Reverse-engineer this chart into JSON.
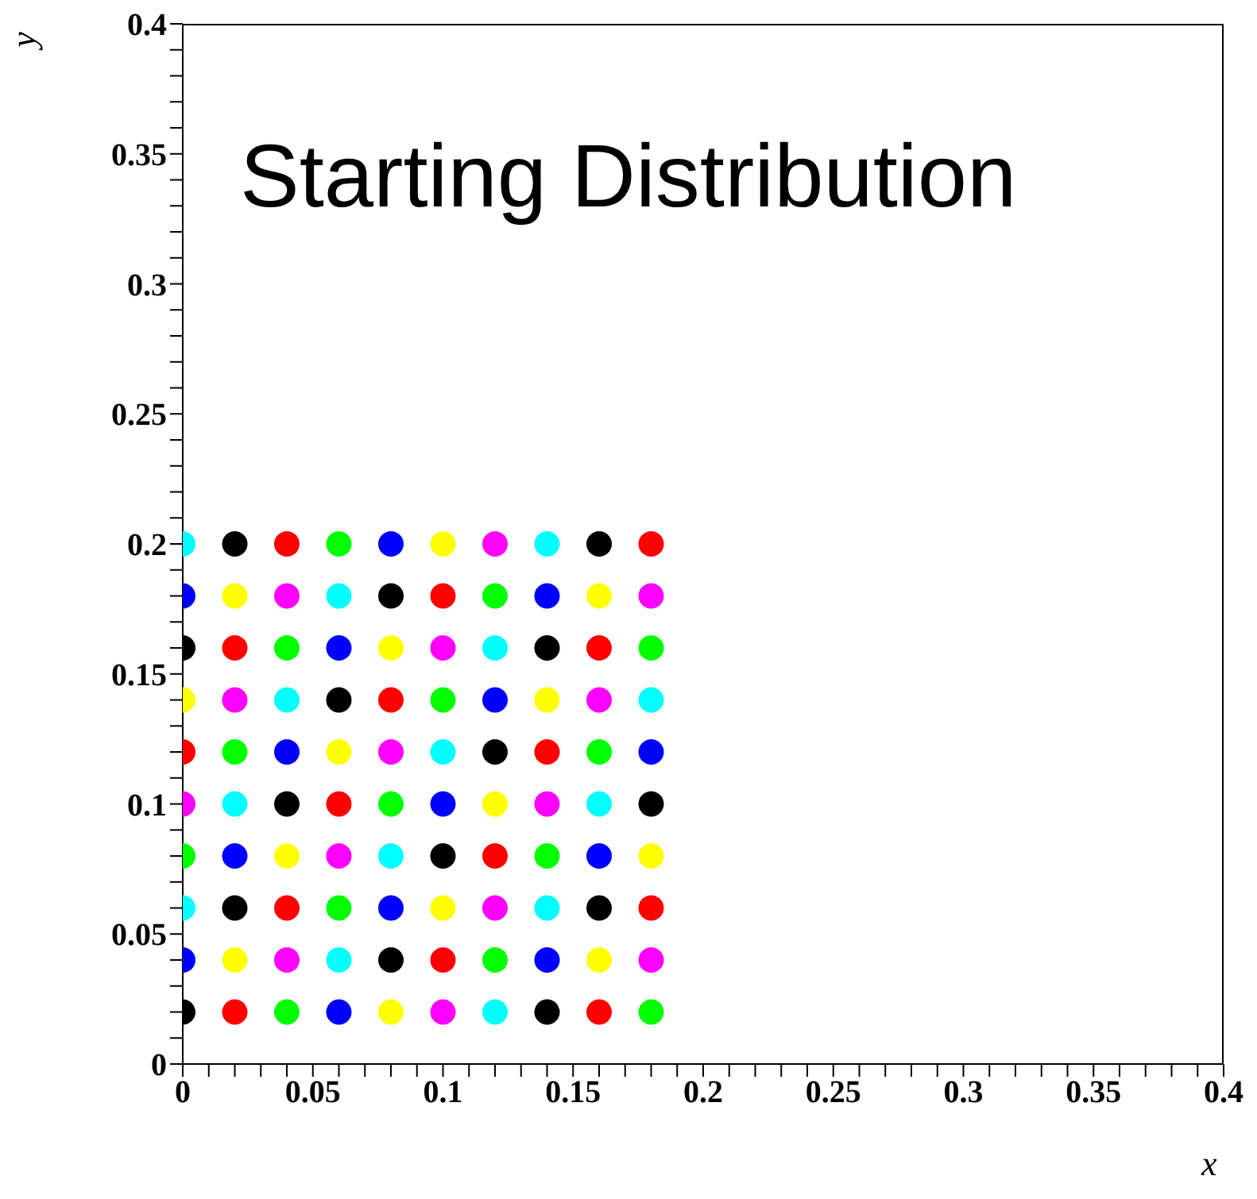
{
  "chart_data": {
    "type": "scatter",
    "title": "Starting Distribution",
    "xlabel": "x",
    "ylabel": "y",
    "xlim": [
      0,
      0.4
    ],
    "ylim": [
      0,
      0.4
    ],
    "xticks": [
      0,
      {
        "value": 0.01,
        "label": null
      },
      {
        "value": 0.02,
        "label": null
      },
      {
        "value": 0.03,
        "label": null
      },
      {
        "value": 0.04,
        "label": null
      },
      0.05,
      {
        "value": 0.06,
        "label": null
      },
      {
        "value": 0.07,
        "label": null
      },
      {
        "value": 0.08,
        "label": null
      },
      {
        "value": 0.09,
        "label": null
      },
      0.1,
      {
        "value": 0.11,
        "label": null
      },
      {
        "value": 0.12,
        "label": null
      },
      {
        "value": 0.13,
        "label": null
      },
      {
        "value": 0.14,
        "label": null
      },
      0.15,
      {
        "value": 0.16,
        "label": null
      },
      {
        "value": 0.17,
        "label": null
      },
      {
        "value": 0.18,
        "label": null
      },
      {
        "value": 0.19,
        "label": null
      },
      0.2,
      {
        "value": 0.21,
        "label": null
      },
      {
        "value": 0.22,
        "label": null
      },
      {
        "value": 0.23,
        "label": null
      },
      {
        "value": 0.24,
        "label": null
      },
      0.25,
      {
        "value": 0.26,
        "label": null
      },
      {
        "value": 0.27,
        "label": null
      },
      {
        "value": 0.28,
        "label": null
      },
      {
        "value": 0.29,
        "label": null
      },
      0.3,
      {
        "value": 0.31,
        "label": null
      },
      {
        "value": 0.32,
        "label": null
      },
      {
        "value": 0.33,
        "label": null
      },
      {
        "value": 0.34,
        "label": null
      },
      0.35,
      {
        "value": 0.36,
        "label": null
      },
      {
        "value": 0.37,
        "label": null
      },
      {
        "value": 0.38,
        "label": null
      },
      {
        "value": 0.39,
        "label": null
      },
      0.4
    ],
    "yticks": [
      0,
      {
        "value": 0.01,
        "label": null
      },
      {
        "value": 0.02,
        "label": null
      },
      {
        "value": 0.03,
        "label": null
      },
      {
        "value": 0.04,
        "label": null
      },
      0.05,
      {
        "value": 0.06,
        "label": null
      },
      {
        "value": 0.07,
        "label": null
      },
      {
        "value": 0.08,
        "label": null
      },
      {
        "value": 0.09,
        "label": null
      },
      0.1,
      {
        "value": 0.11,
        "label": null
      },
      {
        "value": 0.12,
        "label": null
      },
      {
        "value": 0.13,
        "label": null
      },
      {
        "value": 0.14,
        "label": null
      },
      0.15,
      {
        "value": 0.16,
        "label": null
      },
      {
        "value": 0.17,
        "label": null
      },
      {
        "value": 0.18,
        "label": null
      },
      {
        "value": 0.19,
        "label": null
      },
      0.2,
      {
        "value": 0.21,
        "label": null
      },
      {
        "value": 0.22,
        "label": null
      },
      {
        "value": 0.23,
        "label": null
      },
      {
        "value": 0.24,
        "label": null
      },
      0.25,
      {
        "value": 0.26,
        "label": null
      },
      {
        "value": 0.27,
        "label": null
      },
      {
        "value": 0.28,
        "label": null
      },
      {
        "value": 0.29,
        "label": null
      },
      0.3,
      {
        "value": 0.31,
        "label": null
      },
      {
        "value": 0.32,
        "label": null
      },
      {
        "value": 0.33,
        "label": null
      },
      {
        "value": 0.34,
        "label": null
      },
      0.35,
      {
        "value": 0.36,
        "label": null
      },
      {
        "value": 0.37,
        "label": null
      },
      {
        "value": 0.38,
        "label": null
      },
      {
        "value": 0.39,
        "label": null
      },
      0.4
    ],
    "grid": false,
    "legend": false,
    "marker": "circle",
    "series": [
      {
        "x": [
          0,
          0.02,
          0.04,
          0.06,
          0.08,
          0.1,
          0.12,
          0.14,
          0.16,
          0.18,
          0,
          0.02,
          0.04,
          0.06,
          0.08,
          0.1,
          0.12,
          0.14,
          0.16,
          0.18,
          0,
          0.02,
          0.04,
          0.06,
          0.08,
          0.1,
          0.12,
          0.14,
          0.16,
          0.18,
          0,
          0.02,
          0.04,
          0.06,
          0.08,
          0.1,
          0.12,
          0.14,
          0.16,
          0.18,
          0,
          0.02,
          0.04,
          0.06,
          0.08,
          0.1,
          0.12,
          0.14,
          0.16,
          0.18,
          0,
          0.02,
          0.04,
          0.06,
          0.08,
          0.1,
          0.12,
          0.14,
          0.16,
          0.18,
          0,
          0.02,
          0.04,
          0.06,
          0.08,
          0.1,
          0.12,
          0.14,
          0.16,
          0.18,
          0,
          0.02,
          0.04,
          0.06,
          0.08,
          0.1,
          0.12,
          0.14,
          0.16,
          0.18,
          0,
          0.02,
          0.04,
          0.06,
          0.08,
          0.1,
          0.12,
          0.14,
          0.16,
          0.18,
          0,
          0.02,
          0.04,
          0.06,
          0.08,
          0.1,
          0.12,
          0.14,
          0.16,
          0.18
        ],
        "values": [
          0.02,
          0.02,
          0.02,
          0.02,
          0.02,
          0.02,
          0.02,
          0.02,
          0.02,
          0.02,
          0.04,
          0.04,
          0.04,
          0.04,
          0.04,
          0.04,
          0.04,
          0.04,
          0.04,
          0.04,
          0.06,
          0.06,
          0.06,
          0.06,
          0.06,
          0.06,
          0.06,
          0.06,
          0.06,
          0.06,
          0.08,
          0.08,
          0.08,
          0.08,
          0.08,
          0.08,
          0.08,
          0.08,
          0.08,
          0.08,
          0.1,
          0.1,
          0.1,
          0.1,
          0.1,
          0.1,
          0.1,
          0.1,
          0.1,
          0.1,
          0.12,
          0.12,
          0.12,
          0.12,
          0.12,
          0.12,
          0.12,
          0.12,
          0.12,
          0.12,
          0.14,
          0.14,
          0.14,
          0.14,
          0.14,
          0.14,
          0.14,
          0.14,
          0.14,
          0.14,
          0.16,
          0.16,
          0.16,
          0.16,
          0.16,
          0.16,
          0.16,
          0.16,
          0.16,
          0.16,
          0.18,
          0.18,
          0.18,
          0.18,
          0.18,
          0.18,
          0.18,
          0.18,
          0.18,
          0.18,
          0.2,
          0.2,
          0.2,
          0.2,
          0.2,
          0.2,
          0.2,
          0.2,
          0.2,
          0.2
        ],
        "colors": [
          "#000000",
          "#ff0000",
          "#00ff00",
          "#0000ff",
          "#ffff00",
          "#ff00ff",
          "#00ffff",
          "#000000",
          "#ff0000",
          "#00ff00",
          "#0000ff",
          "#ffff00",
          "#ff00ff",
          "#00ffff",
          "#000000",
          "#ff0000",
          "#00ff00",
          "#0000ff",
          "#ffff00",
          "#ff00ff",
          "#00ffff",
          "#000000",
          "#ff0000",
          "#00ff00",
          "#0000ff",
          "#ffff00",
          "#ff00ff",
          "#00ffff",
          "#000000",
          "#ff0000",
          "#00ff00",
          "#0000ff",
          "#ffff00",
          "#ff00ff",
          "#00ffff",
          "#000000",
          "#ff0000",
          "#00ff00",
          "#0000ff",
          "#ffff00",
          "#ff00ff",
          "#00ffff",
          "#000000",
          "#ff0000",
          "#00ff00",
          "#0000ff",
          "#ffff00",
          "#ff00ff",
          "#00ffff",
          "#000000",
          "#ff0000",
          "#00ff00",
          "#0000ff",
          "#ffff00",
          "#ff00ff",
          "#00ffff",
          "#000000",
          "#ff0000",
          "#00ff00",
          "#0000ff",
          "#ffff00",
          "#ff00ff",
          "#00ffff",
          "#000000",
          "#ff0000",
          "#00ff00",
          "#0000ff",
          "#ffff00",
          "#ff00ff",
          "#00ffff",
          "#000000",
          "#ff0000",
          "#00ff00",
          "#0000ff",
          "#ffff00",
          "#ff00ff",
          "#00ffff",
          "#000000",
          "#ff0000",
          "#00ff00",
          "#0000ff",
          "#ffff00",
          "#ff00ff",
          "#00ffff",
          "#000000",
          "#ff0000",
          "#00ff00",
          "#0000ff",
          "#ffff00",
          "#ff00ff",
          "#00ffff",
          "#000000",
          "#ff0000",
          "#00ff00",
          "#0000ff",
          "#ffff00",
          "#ff00ff",
          "#00ffff",
          "#000000",
          "#ff0000"
        ]
      }
    ]
  }
}
